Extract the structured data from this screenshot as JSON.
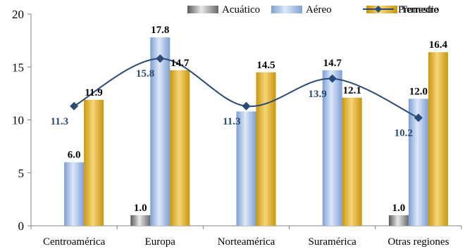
{
  "chart_data": {
    "type": "bar",
    "categories": [
      "Centroamérica",
      "Europa",
      "Norteamérica",
      "Suramérica",
      "Otras regiones"
    ],
    "series": [
      {
        "name": "Acuático",
        "type": "bar",
        "values": [
          null,
          1.0,
          null,
          null,
          1.0
        ],
        "labels": [
          "",
          "1.0",
          "",
          "",
          "1.0"
        ],
        "color": "#8a8a8a"
      },
      {
        "name": "Aéreo",
        "type": "bar",
        "values": [
          6.0,
          17.8,
          10.8,
          14.7,
          12.0
        ],
        "labels": [
          "6.0",
          "17.8",
          "",
          "14.7",
          "12.0"
        ],
        "color": "#8fb0e0"
      },
      {
        "name": "Terrestre",
        "type": "bar",
        "values": [
          11.9,
          14.7,
          14.5,
          12.1,
          16.4
        ],
        "labels": [
          "11.9",
          "14.7",
          "14.5",
          "12.1",
          "16.4"
        ],
        "color": "#d4a017"
      },
      {
        "name": "Promedio",
        "type": "line",
        "values": [
          11.3,
          15.8,
          11.3,
          13.9,
          10.2
        ],
        "labels": [
          "11.3",
          "15.8",
          "11.3",
          "13.9",
          "10.2"
        ],
        "color": "#2a4a78"
      }
    ],
    "yticks": [
      "0",
      "5",
      "10",
      "15",
      "20"
    ],
    "ylim": [
      0,
      20
    ],
    "legend_position": "top",
    "grid": false
  }
}
